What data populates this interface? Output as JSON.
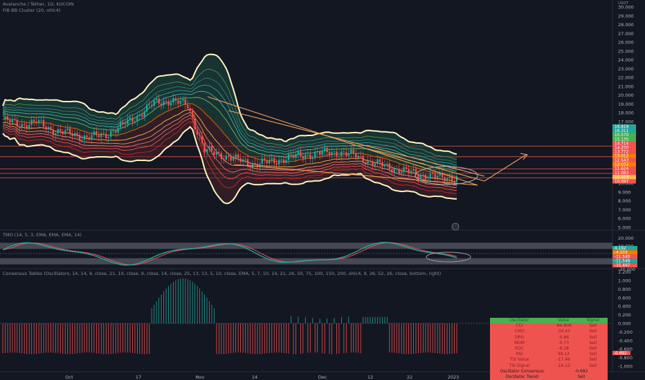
{
  "header": {
    "symbol_line": "Avalanche / Tether, 1D, KUCOIN",
    "indicator_line": "FIB BB Cluster (20, ohlc4)",
    "tmo_line": "TMO (14, 5, 3, EMA, EMA, EMA, 14)",
    "consensus_line": "Consensus Tables (Oscillators, 14, 14, 9, close, 21, 10, close, 9, close, 14, close, 25, 13, 13, 5, 10, close, EMA, 5, 7, 10, 14, 21, 26, 50, 75, 100, 150, 200, ohlc4, 9, 26, 52, 26, close, bottom, right)",
    "currency": "USDT"
  },
  "price_axis": {
    "ticks": [
      "30.000",
      "29.000",
      "28.000",
      "27.000",
      "26.000",
      "25.000",
      "24.000",
      "23.000",
      "22.000",
      "21.000",
      "20.000",
      "19.000",
      "18.000",
      "17.000",
      "16.000",
      "15.000",
      "14.000",
      "13.000",
      "12.000",
      "11.000",
      "10.000",
      "9.000",
      "8.000",
      "7.000",
      "6.000",
      "5.000"
    ],
    "badges": [
      {
        "label": "16.919",
        "color": "#26a69a"
      },
      {
        "label": "16.311",
        "color": "#26a69a"
      },
      {
        "label": "15.570",
        "color": "#4caf50"
      },
      {
        "label": "15.135",
        "color": "#4caf50"
      },
      {
        "label": "14.714",
        "color": "#ef5350"
      },
      {
        "label": "14.250",
        "color": "#ef5350"
      },
      {
        "label": "13.772",
        "color": "#ef5350"
      },
      {
        "label": "13.012",
        "color": "#f57c00"
      },
      {
        "label": "12.543",
        "color": "#ef5350"
      },
      {
        "label": "12.072",
        "color": "#f57c00"
      },
      {
        "label": "11.624",
        "color": "#ef5350"
      },
      {
        "label": "11.083",
        "color": "#ef5350"
      },
      {
        "label": "10.513",
        "color": "#ffb74d"
      },
      {
        "label": "10.097",
        "color": "#ef5350"
      }
    ]
  },
  "tmo_axis": {
    "ticks": [
      "20.000",
      "10.000",
      "0.000",
      "-10.000",
      "-20.000"
    ],
    "badges": [
      {
        "label": "4.192",
        "color": "#26a69a"
      },
      {
        "label": "-4.103",
        "color": "#f57c00"
      },
      {
        "label": "-11.540",
        "color": "#ef5350"
      },
      {
        "label": "-11.549",
        "color": "#26a69a"
      },
      {
        "label": "-15.497",
        "color": "#ef5350"
      }
    ]
  },
  "cons_axis": {
    "ticks": [
      "1.200",
      "1.000",
      "0.800",
      "0.600",
      "0.400",
      "0.200",
      "0.000",
      "-0.200",
      "-0.400",
      "-0.600",
      "-0.800",
      "-1.000"
    ],
    "badge": "-0.692"
  },
  "time_axis": [
    "Oct",
    "17",
    "Nov",
    "14",
    "Dec",
    "12",
    "22",
    "2023",
    "16",
    "Feb"
  ],
  "consensus_table": {
    "header": [
      "Oscillator",
      "Value",
      "Signal"
    ],
    "rows": [
      {
        "name": "CCI",
        "value": "-84.806",
        "signal": "Sell"
      },
      {
        "name": "CMO",
        "value": "-34.43",
        "signal": "Sell"
      },
      {
        "name": "DPO",
        "value": "-0.86",
        "signal": "Sell"
      },
      {
        "name": "MOM",
        "value": "-0.73",
        "signal": "Sell"
      },
      {
        "name": "ROC",
        "value": "-6.28",
        "signal": "Sell"
      },
      {
        "name": "RSI",
        "value": "39.13",
        "signal": "Sell"
      },
      {
        "name": "TSI Value",
        "value": "-17.46",
        "signal": "Sell"
      },
      {
        "name": "TSI Signal",
        "value": "-16.13",
        "signal": "Sell"
      }
    ],
    "summary": [
      {
        "name": "Oscillator Consensus:",
        "value": "-0.692"
      },
      {
        "name": "Oscillator Trend:",
        "value": "Sell"
      },
      {
        "name": "Overall Consensus:",
        "value": "-0.596 (-0.711)"
      },
      {
        "name": "Overall Trend:",
        "value": "Sell"
      }
    ]
  },
  "colors": {
    "up": "#26a69a",
    "down": "#ef5350",
    "bg": "#131722",
    "band": "#fff5c2",
    "trend": "#f5a45d"
  },
  "chart_data": {
    "type": "candlestick",
    "x": [
      "Oct",
      "17",
      "Nov",
      "14",
      "Dec",
      "12",
      "22",
      "2023"
    ],
    "close_path_usdt": [
      17.2,
      16.6,
      16.9,
      16.0,
      15.6,
      15.2,
      15.4,
      16.4,
      17.6,
      19.1,
      19.4,
      18.8,
      13.7,
      13.2,
      12.6,
      12.2,
      12.4,
      12.9,
      13.2,
      13.4,
      13.5,
      13.1,
      12.3,
      11.8,
      11.3,
      10.9,
      10.6,
      10.6
    ],
    "ylim": [
      5,
      30
    ],
    "levels": [
      14.2,
      13.0,
      11.6,
      11.1,
      10.6
    ],
    "tmo": {
      "ylim": [
        -20,
        20
      ]
    },
    "consensus": {
      "ylim": [
        -1,
        1.2
      ]
    }
  }
}
